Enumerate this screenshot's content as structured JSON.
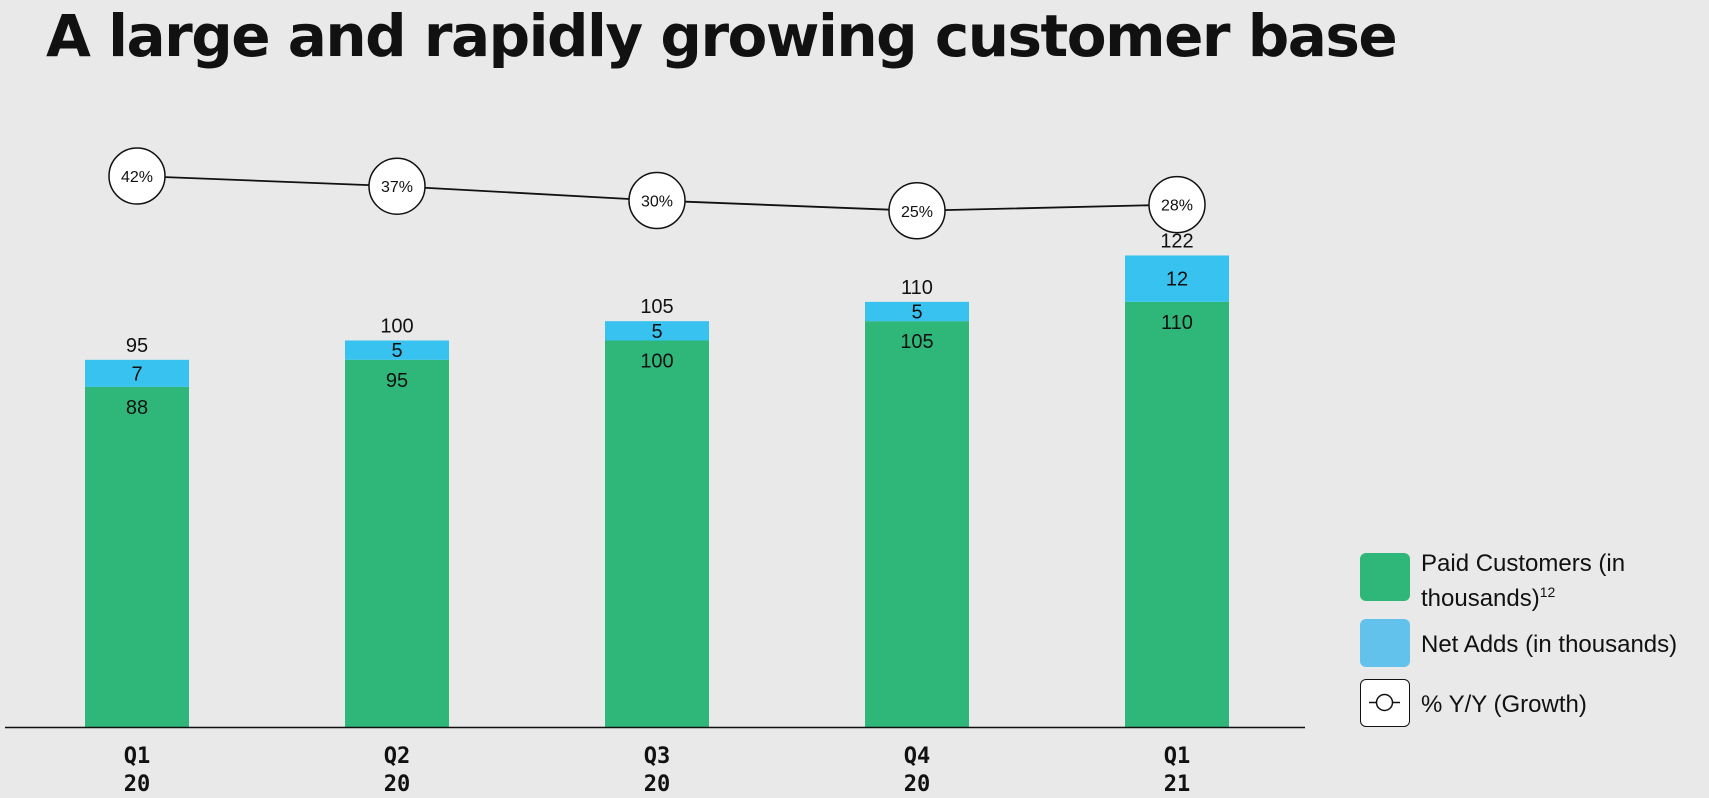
{
  "title": "A large and rapidly growing customer base",
  "colors": {
    "paid": "#2fb77a",
    "net_adds": "#37c2ef",
    "net_adds_legend": "#62c2ec",
    "line": "#111111",
    "background": "#e9e9e9"
  },
  "legend": {
    "paid": {
      "label": "Paid Customers (in thousands)",
      "superscript": "12"
    },
    "net_adds": {
      "label": "Net Adds (in thousands)"
    },
    "growth": {
      "label": "% Y/Y (Growth)",
      "icon": "line-marker-icon"
    }
  },
  "chart_data": {
    "type": "bar",
    "stacked": true,
    "categories": [
      "Q1 20",
      "Q2 20",
      "Q3 20",
      "Q4 20",
      "Q1 21"
    ],
    "category_lines": [
      [
        "Q1",
        "20"
      ],
      [
        "Q2",
        "20"
      ],
      [
        "Q3",
        "20"
      ],
      [
        "Q4",
        "20"
      ],
      [
        "Q1",
        "21"
      ]
    ],
    "series": [
      {
        "name": "Paid Customers (in thousands)",
        "values": [
          88,
          95,
          100,
          105,
          110
        ]
      },
      {
        "name": "Net Adds (in thousands)",
        "values": [
          7,
          5,
          5,
          5,
          12
        ]
      }
    ],
    "totals": [
      95,
      100,
      105,
      110,
      122
    ],
    "line_series": {
      "name": "% Y/Y (Growth)",
      "values": [
        42,
        37,
        30,
        25,
        28
      ],
      "labels": [
        "42%",
        "37%",
        "30%",
        "25%",
        "28%"
      ]
    },
    "ylim": [
      0,
      122
    ],
    "grid": false,
    "legend_position": "right"
  }
}
